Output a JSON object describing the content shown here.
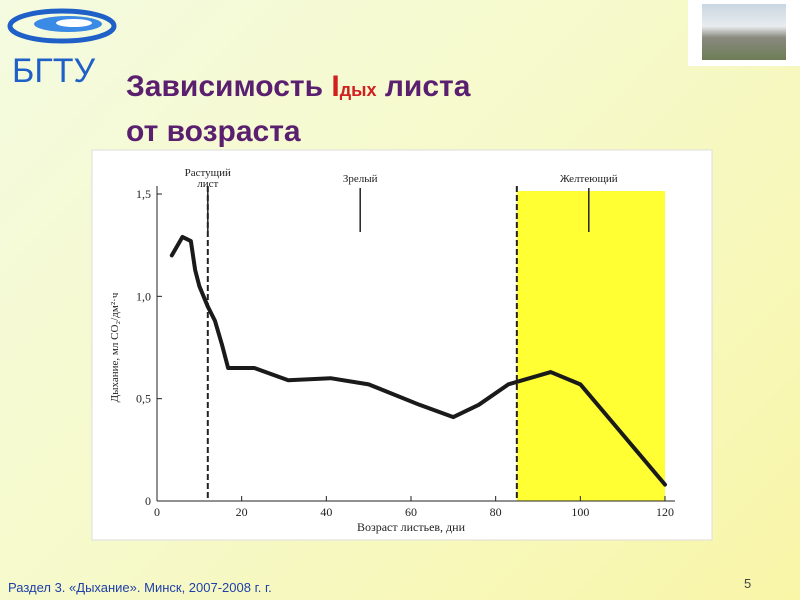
{
  "slide": {
    "logo": "БГТУ",
    "title": {
      "start": "Зависимость ",
      "symbol": "I",
      "subscript": "дых",
      "end": " листа",
      "line2": "от возраста"
    },
    "footer": "Раздел 3. «Дыхание». Минск, 2007-2008 г. г.",
    "page": "5"
  },
  "chart_data": {
    "type": "line",
    "x": [
      3.5,
      6,
      8,
      9,
      10,
      12,
      13.7,
      15.4,
      16.8,
      19.6,
      23,
      31,
      41,
      50,
      62,
      70,
      76,
      83,
      93,
      100,
      109,
      120
    ],
    "values": [
      1.2,
      1.29,
      1.27,
      1.13,
      1.05,
      0.95,
      0.88,
      0.76,
      0.65,
      0.65,
      0.65,
      0.59,
      0.6,
      0.57,
      0.47,
      0.41,
      0.47,
      0.57,
      0.63,
      0.57,
      0.35,
      0.08
    ],
    "color": "#1a1a1a",
    "xlim": [
      0,
      120
    ],
    "xticks": [
      0,
      20,
      40,
      60,
      80,
      100,
      120
    ],
    "ylim": [
      0,
      1.5
    ],
    "yticks": [
      0,
      {
        "value": 0.5,
        "label": "0,5"
      },
      {
        "value": 1,
        "label": "1,0"
      },
      {
        "value": 1.5,
        "label": "1,5"
      }
    ],
    "xlabel": "Возраст листьев, дни",
    "ylabel": "Дыхание, мл CO₂/дм²·ч",
    "phases": [
      {
        "label": [
          "Растущий",
          "лист"
        ],
        "x": 12
      },
      {
        "label": [
          "Зрелый"
        ],
        "x": 48
      },
      {
        "label": [
          "Желтеющий"
        ],
        "x": 102
      }
    ],
    "dividers": [
      12,
      85
    ],
    "region": {
      "from": 85,
      "to": 120,
      "color": "#ffff33"
    }
  }
}
